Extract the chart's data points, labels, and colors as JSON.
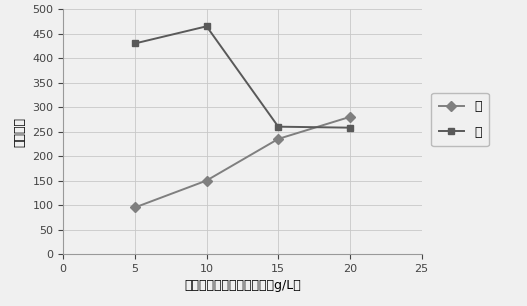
{
  "x_values": [
    5,
    10,
    15,
    20
  ],
  "arsenic_values": [
    95,
    150,
    235,
    280
  ],
  "mercury_values": [
    430,
    465,
    260,
    258
  ],
  "arsenic_label": "础",
  "mercury_label": "汞",
  "xlabel": "还原剂中硒氢化钓的浓度（g/L）",
  "ylabel": "荧光强度",
  "xlim": [
    0,
    25
  ],
  "ylim": [
    0,
    500
  ],
  "xticks": [
    0,
    5,
    10,
    15,
    20,
    25
  ],
  "yticks": [
    0,
    50,
    100,
    150,
    200,
    250,
    300,
    350,
    400,
    450,
    500
  ],
  "arsenic_color": "#7f7f7f",
  "mercury_color": "#595959",
  "arsenic_marker": "D",
  "mercury_marker": "s",
  "grid_color": "#c8c8c8",
  "bg_color": "#f0f0f0",
  "plot_bg_color": "#f0f0f0",
  "line_width": 1.4,
  "marker_size": 5,
  "tick_fontsize": 8,
  "label_fontsize": 9,
  "legend_fontsize": 9
}
